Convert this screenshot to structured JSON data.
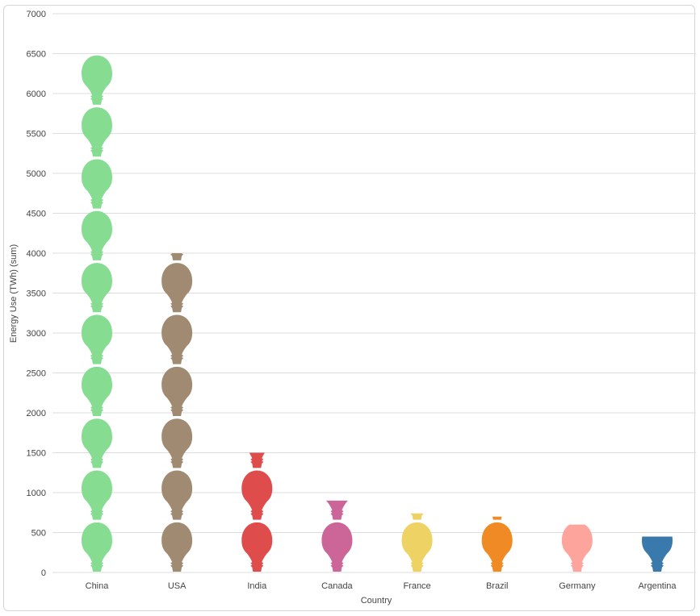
{
  "chart_data": {
    "type": "bar",
    "style": "pictograph lightbulbs",
    "title": "",
    "xlabel": "Country",
    "ylabel": "Energy Use (TWh) (sum)",
    "ylim": [
      0,
      7000
    ],
    "yticks": [
      0,
      500,
      1000,
      1500,
      2000,
      2500,
      3000,
      3500,
      4000,
      4500,
      5000,
      5500,
      6000,
      6500,
      7000
    ],
    "grid": true,
    "legend": "none",
    "unit_per_icon": 650,
    "categories": [
      "China",
      "USA",
      "India",
      "Canada",
      "France",
      "Brazil",
      "Germany",
      "Argentina"
    ],
    "values": [
      6500,
      4000,
      1500,
      900,
      740,
      700,
      600,
      450
    ],
    "colors": [
      "#86dd92",
      "#a08b72",
      "#df4c4c",
      "#cc6699",
      "#eed264",
      "#f08a24",
      "#fda59d",
      "#3a79ab"
    ]
  }
}
